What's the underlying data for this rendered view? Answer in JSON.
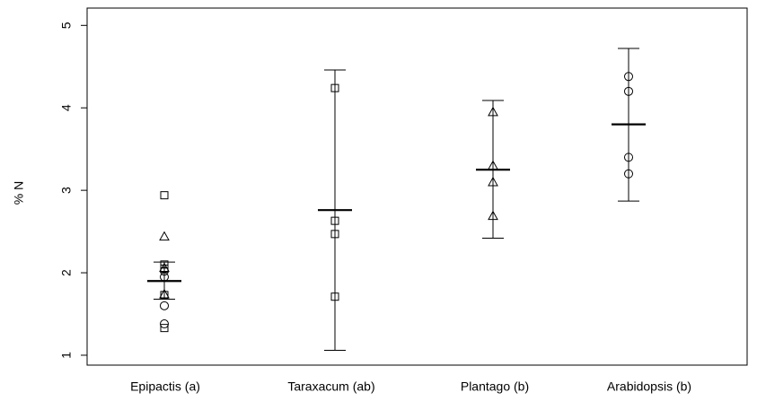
{
  "chart_data": {
    "type": "strip",
    "ylabel": "% N",
    "categories": [
      "Epipactis (a)",
      "Taraxacum (ab)",
      "Plantago (b)",
      "Arabidopsis (b)"
    ],
    "ylim": [
      0.88,
      5.21
    ],
    "yticks": [
      1,
      2,
      3,
      4,
      5
    ],
    "groups": [
      {
        "mean": 1.9,
        "error_high": 2.13,
        "error_low": 1.68,
        "squares": [
          2.94,
          2.1,
          2.05,
          1.73,
          1.33
        ],
        "triangles": [
          2.44,
          2.06,
          1.74
        ],
        "circles": [
          2.02,
          1.95,
          1.6,
          1.38
        ]
      },
      {
        "mean": 2.76,
        "error_high": 4.46,
        "error_low": 1.06,
        "squares": [
          4.24,
          2.63,
          2.47,
          1.71
        ],
        "triangles": [],
        "circles": []
      },
      {
        "mean": 3.25,
        "error_high": 4.09,
        "error_low": 2.42,
        "squares": [],
        "triangles": [
          3.95,
          3.3,
          3.1,
          2.69
        ],
        "circles": []
      },
      {
        "mean": 3.8,
        "error_high": 4.72,
        "error_low": 2.87,
        "squares": [],
        "triangles": [],
        "circles": [
          4.38,
          4.2,
          3.4,
          3.2
        ]
      }
    ]
  }
}
